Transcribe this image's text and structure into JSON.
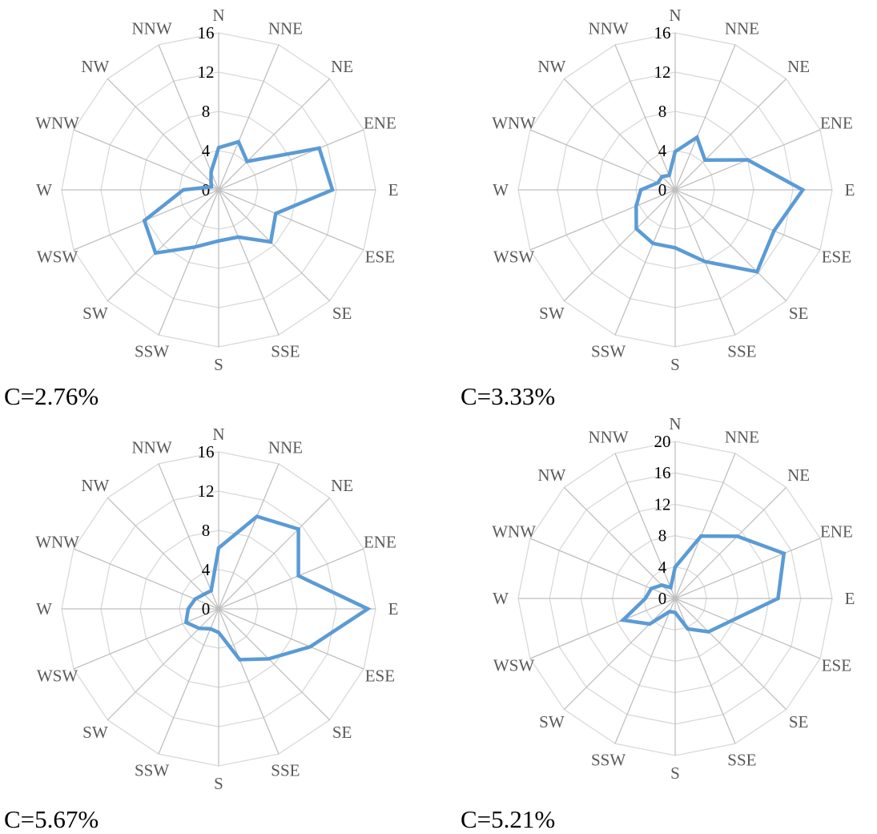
{
  "chart_data": [
    {
      "type": "radar",
      "directions": [
        "N",
        "NNE",
        "NE",
        "ENE",
        "E",
        "ESE",
        "SE",
        "SSE",
        "S",
        "SSW",
        "SW",
        "WSW",
        "W",
        "WNW",
        "NW",
        "NNW"
      ],
      "ticks": [
        0,
        4,
        8,
        12,
        16
      ],
      "rmax": 16,
      "values": [
        4.3,
        5.3,
        4.1,
        11.1,
        11.6,
        6.3,
        7.5,
        5.2,
        5.2,
        6.3,
        9.1,
        8.2,
        3.6,
        0.8,
        1.1,
        2.0
      ],
      "caption": "C=2.76%",
      "line_color": "#5b9bd5"
    },
    {
      "type": "radar",
      "directions": [
        "N",
        "NNE",
        "NE",
        "ENE",
        "E",
        "ESE",
        "SE",
        "SSE",
        "S",
        "SSW",
        "SW",
        "WSW",
        "W",
        "WNW",
        "NW",
        "NNW"
      ],
      "ticks": [
        0,
        4,
        8,
        12,
        16
      ],
      "rmax": 16,
      "values": [
        3.9,
        5.8,
        4.3,
        8.0,
        13.0,
        10.9,
        11.8,
        7.9,
        5.9,
        5.9,
        5.6,
        4.3,
        3.5,
        1.9,
        1.9,
        1.6
      ],
      "caption": "C=3.33%",
      "line_color": "#5b9bd5"
    },
    {
      "type": "radar",
      "directions": [
        "N",
        "NNE",
        "NE",
        "ENE",
        "E",
        "ESE",
        "SE",
        "SSE",
        "S",
        "SSW",
        "SW",
        "WSW",
        "W",
        "WNW",
        "NW",
        "NNW"
      ],
      "ticks": [
        0,
        4,
        8,
        12,
        16
      ],
      "rmax": 16,
      "values": [
        6.2,
        10.2,
        11.5,
        8.8,
        15.2,
        10.1,
        7.2,
        5.6,
        2.4,
        2.2,
        2.8,
        3.6,
        3.1,
        2.6,
        2.1,
        2.0
      ],
      "caption": "C=5.67%",
      "line_color": "#5b9bd5"
    },
    {
      "type": "radar",
      "directions": [
        "N",
        "NNE",
        "NE",
        "ENE",
        "E",
        "ESE",
        "SE",
        "SSE",
        "S",
        "SSW",
        "SW",
        "WSW",
        "W",
        "WNW",
        "NW",
        "NNW"
      ],
      "ticks": [
        0,
        4,
        8,
        12,
        16,
        20
      ],
      "rmax": 20,
      "values": [
        4.0,
        8.6,
        11.2,
        15.0,
        13.1,
        7.6,
        6.0,
        4.2,
        1.8,
        1.8,
        4.6,
        7.2,
        3.8,
        3.3,
        2.4,
        1.5
      ],
      "caption": "C=5.21%",
      "line_color": "#5b9bd5"
    }
  ]
}
